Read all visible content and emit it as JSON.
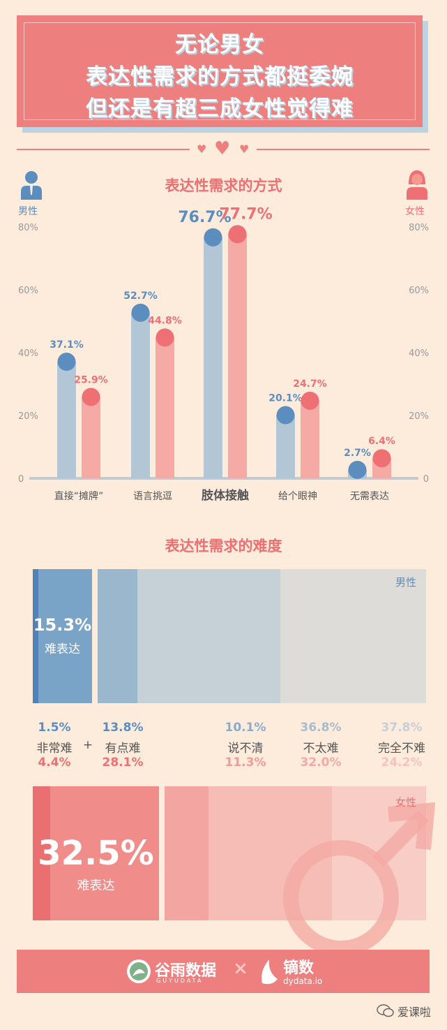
{
  "title": {
    "lines": [
      "无论男女",
      "表达性需求的方式都挺委婉",
      "但还是有超三成女性觉得难"
    ]
  },
  "colors": {
    "male": "#5b8dbf",
    "female": "#ee7074",
    "male_bar": "#b3c6d6",
    "female_bar": "#f5aaa5",
    "accent": "#ee7f7f"
  },
  "legend": {
    "male": "男性",
    "female": "女性"
  },
  "chart_data": [
    {
      "type": "bar",
      "title": "表达性需求的方式",
      "categories": [
        "直接“摊牌”",
        "语言挑逗",
        "肢体接触",
        "给个眼神",
        "无需表达"
      ],
      "series": [
        {
          "name": "男性",
          "values": [
            37.1,
            52.7,
            76.7,
            20.1,
            2.7
          ],
          "labels": [
            "37.1%",
            "52.7%",
            "76.7%",
            "20.1%",
            "2.7%"
          ]
        },
        {
          "name": "女性",
          "values": [
            25.9,
            44.8,
            77.7,
            24.7,
            6.4
          ],
          "labels": [
            "25.9%",
            "44.8%",
            "77.7%",
            "24.7%",
            "6.4%"
          ]
        }
      ],
      "ylim": [
        0,
        80
      ],
      "yticks": [
        "0",
        "20%",
        "40%",
        "60%",
        "80%"
      ],
      "grid": false
    },
    {
      "type": "bar",
      "title": "表达性需求的难度",
      "stacked": true,
      "categories": [
        "非常难",
        "有点难",
        "说不清",
        "不太难",
        "完全不难"
      ],
      "series": [
        {
          "name": "男性",
          "values": [
            1.5,
            13.8,
            10.1,
            36.8,
            37.8
          ],
          "labels": [
            "1.5%",
            "13.8%",
            "10.1%",
            "36.8%",
            "37.8%"
          ]
        },
        {
          "name": "女性",
          "values": [
            4.4,
            28.1,
            11.3,
            32.0,
            24.2
          ],
          "labels": [
            "4.4%",
            "28.1%",
            "11.3%",
            "32.0%",
            "24.2%"
          ]
        }
      ],
      "totals": {
        "male": {
          "value": "15.3%",
          "label": "难表达"
        },
        "female": {
          "value": "32.5%",
          "label": "难表达"
        }
      },
      "plus": "+"
    }
  ],
  "footer": {
    "logo_left": "谷雨数据",
    "logo_left_sub": "GUYUDATA",
    "cross": "×",
    "logo_right": "镝数",
    "logo_right_sub": "dydata.io"
  },
  "watermark": "爱课啦"
}
